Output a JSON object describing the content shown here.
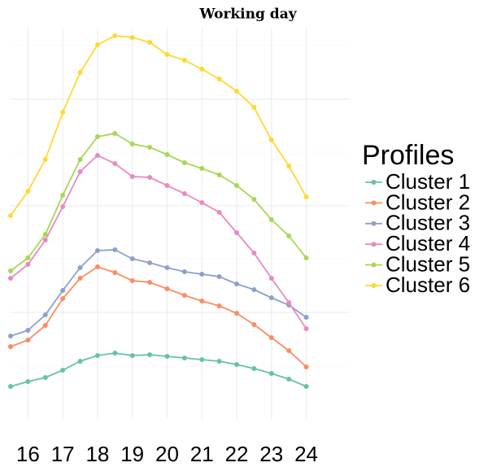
{
  "chart_data": {
    "type": "line",
    "title": "Working day",
    "legend_title": "Profiles",
    "x": [
      15.5,
      16,
      16.5,
      17,
      17.5,
      18,
      18.5,
      19,
      19.5,
      20,
      20.5,
      21,
      21.5,
      22,
      22.5,
      23,
      23.5,
      24
    ],
    "xlim": [
      15.5,
      25.25
    ],
    "xticks": [
      16,
      17,
      18,
      19,
      20,
      21,
      22,
      23,
      24
    ],
    "ylim": [
      0,
      480
    ],
    "yticks": [
      65,
      131,
      197,
      262,
      328,
      393,
      459
    ],
    "grid": true,
    "legend": "right",
    "series": [
      {
        "name": "Cluster 1",
        "color": "#66c2a5",
        "values": [
          40,
          46,
          51,
          60,
          71,
          78,
          81,
          78,
          79,
          77,
          75,
          73,
          71,
          67,
          62,
          56,
          49,
          40
        ]
      },
      {
        "name": "Cluster 2",
        "color": "#fc8d62",
        "values": [
          89,
          97,
          115,
          148,
          173,
          187,
          180,
          170,
          168,
          160,
          152,
          145,
          139,
          130,
          116,
          100,
          84,
          64
        ]
      },
      {
        "name": "Cluster 3",
        "color": "#8da0cb",
        "values": [
          102,
          109,
          128,
          158,
          186,
          207,
          208,
          197,
          192,
          186,
          181,
          178,
          175,
          166,
          159,
          149,
          140,
          125
        ]
      },
      {
        "name": "Cluster 4",
        "color": "#e78ac3",
        "values": [
          173,
          190,
          220,
          261,
          304,
          324,
          314,
          298,
          297,
          287,
          277,
          266,
          254,
          229,
          204,
          173,
          143,
          111
        ]
      },
      {
        "name": "Cluster 5",
        "color": "#a6d854",
        "values": [
          182,
          198,
          227,
          275,
          319,
          347,
          351,
          338,
          334,
          325,
          315,
          308,
          300,
          287,
          270,
          245,
          225,
          198
        ]
      },
      {
        "name": "Cluster 6",
        "color": "#ffd92f",
        "values": [
          250,
          280,
          319,
          377,
          426,
          460,
          471,
          469,
          463,
          448,
          441,
          430,
          418,
          403,
          383,
          343,
          311,
          273
        ]
      }
    ]
  }
}
